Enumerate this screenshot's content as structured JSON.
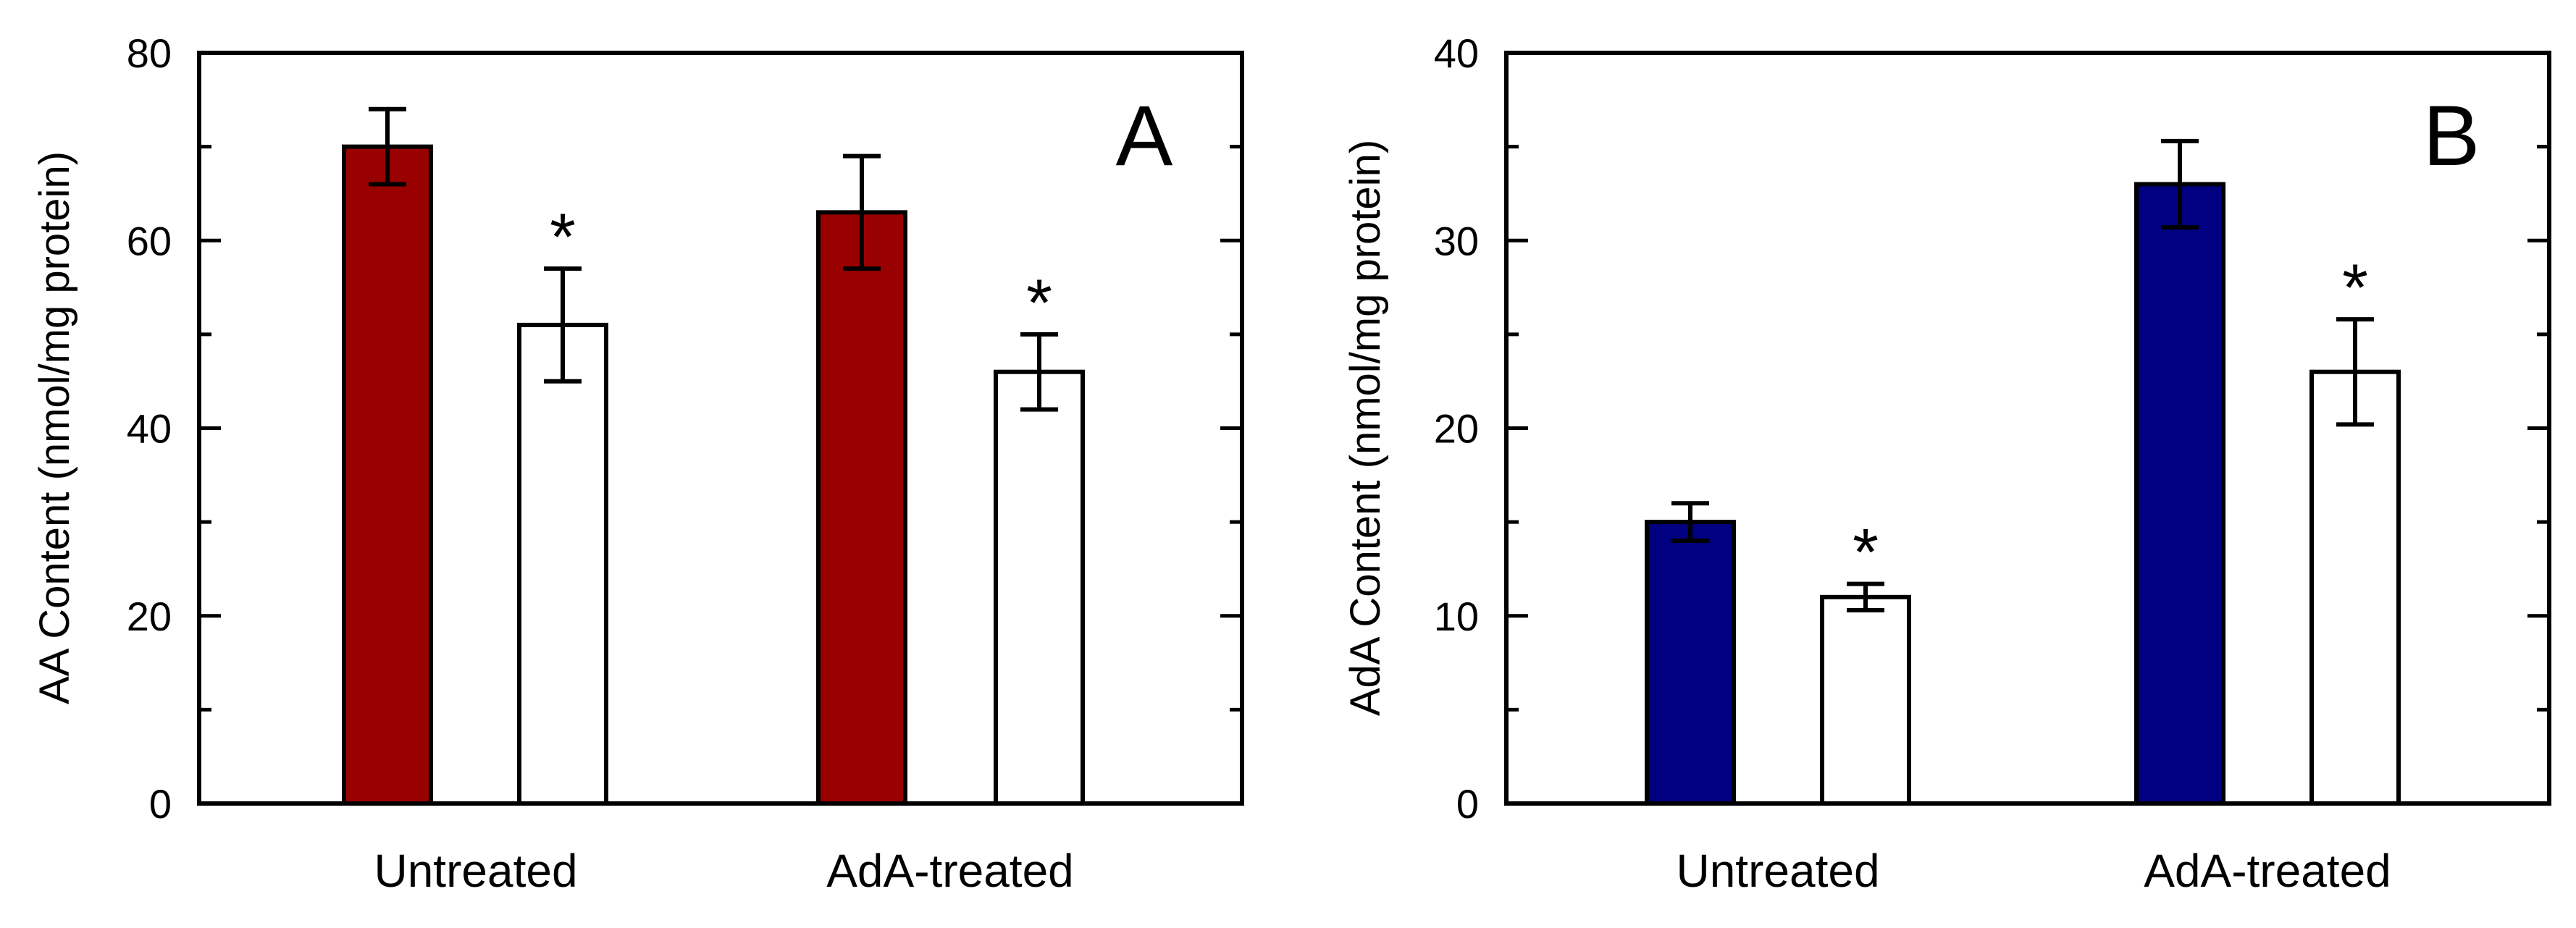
{
  "chart_data": [
    {
      "type": "bar",
      "panel_label": "A",
      "title": "",
      "xlabel": "",
      "ylabel": "AA Content (nmol/mg protein)",
      "ylim": [
        0,
        80
      ],
      "yticks": [
        0,
        20,
        40,
        60,
        80
      ],
      "categories": [
        "Untreated",
        "AdA-treated"
      ],
      "series": [
        {
          "name": "filled",
          "color": "#990000",
          "values": [
            70,
            63
          ],
          "errors": [
            4,
            6
          ],
          "significant": [
            false,
            false
          ]
        },
        {
          "name": "open",
          "color": "#ffffff",
          "values": [
            51,
            46
          ],
          "errors": [
            6,
            4
          ],
          "significant": [
            true,
            true
          ]
        }
      ],
      "significance_marker": "*"
    },
    {
      "type": "bar",
      "panel_label": "B",
      "title": "",
      "xlabel": "",
      "ylabel": "AdA Content (nmol/mg protein)",
      "ylim": [
        0,
        40
      ],
      "yticks": [
        0,
        10,
        20,
        30,
        40
      ],
      "categories": [
        "Untreated",
        "AdA-treated"
      ],
      "series": [
        {
          "name": "filled",
          "color": "#000080",
          "values": [
            15,
            33
          ],
          "errors": [
            1,
            2.3
          ],
          "significant": [
            false,
            false
          ]
        },
        {
          "name": "open",
          "color": "#ffffff",
          "values": [
            11,
            23
          ],
          "errors": [
            0.7,
            2.8
          ],
          "significant": [
            true,
            true
          ]
        }
      ],
      "significance_marker": "*"
    }
  ]
}
